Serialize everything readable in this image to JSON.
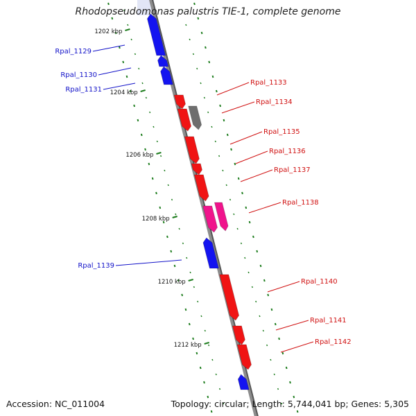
{
  "map_title": "Rhodopseudomonas palustris TIE-1, complete genome",
  "footer": {
    "accession": "Accession: NC_011004",
    "summary": "Topology: circular; Length: 5,744,041 bp; Genes: 5,305"
  },
  "colors": {
    "backbone": "#8c8c8c",
    "ticks": "#1e7d1e",
    "forward_genes": "#1414f0",
    "reverse_genes": "#f01414",
    "gray_gene": "#6e6e6e",
    "pink_gene": "#f0148c"
  },
  "ticks": [
    "1202 kbp",
    "1204 kbp",
    "1206 kbp",
    "1208 kbp",
    "1210 kbp",
    "1212 kbp"
  ],
  "genes": [
    {
      "label": "Rpal_1129",
      "strand": "forward",
      "color": "blue"
    },
    {
      "label": "Rpal_1130",
      "strand": "forward",
      "color": "blue"
    },
    {
      "label": "Rpal_1131",
      "strand": "forward",
      "color": "blue"
    },
    {
      "label": "Rpal_1133",
      "strand": "reverse",
      "color": "red"
    },
    {
      "label": "Rpal_1134",
      "strand": "reverse",
      "color": "gray"
    },
    {
      "label": "Rpal_1135",
      "strand": "reverse",
      "color": "red"
    },
    {
      "label": "Rpal_1136",
      "strand": "reverse",
      "color": "red"
    },
    {
      "label": "Rpal_1137",
      "strand": "reverse",
      "color": "red"
    },
    {
      "label": "Rpal_1138",
      "strand": "reverse",
      "color": "pink"
    },
    {
      "label": "Rpal_1139",
      "strand": "forward",
      "color": "blue"
    },
    {
      "label": "Rpal_1140",
      "strand": "reverse",
      "color": "red"
    },
    {
      "label": "Rpal_1141",
      "strand": "reverse",
      "color": "red"
    },
    {
      "label": "Rpal_1142",
      "strand": "reverse",
      "color": "red"
    }
  ]
}
